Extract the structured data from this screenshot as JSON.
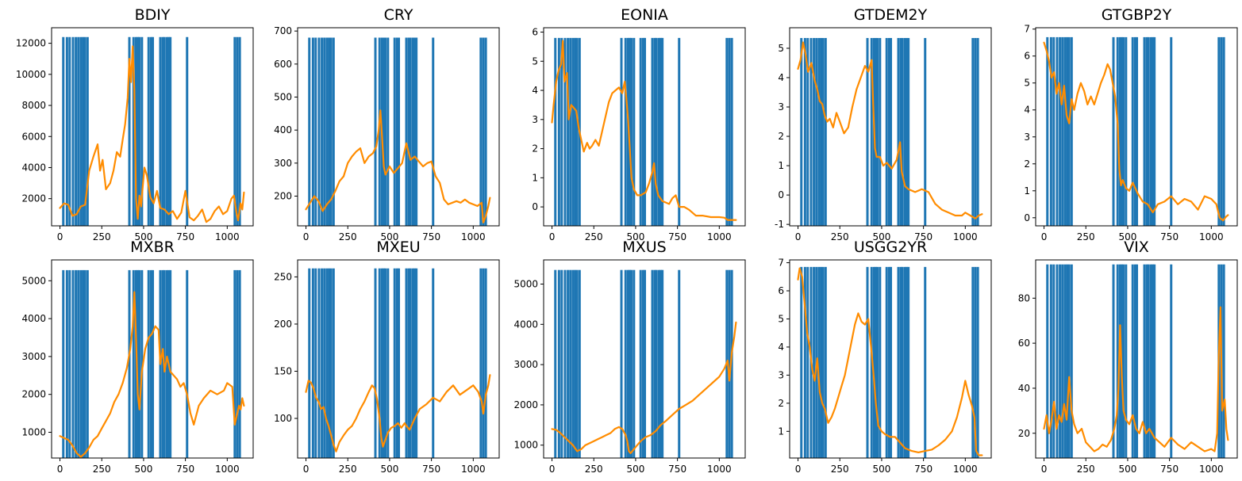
{
  "figure": {
    "bar_color": "#1f77b4",
    "line_color": "#ff8c00",
    "event_x": [
      20,
      42,
      58,
      78,
      95,
      110,
      125,
      138,
      150,
      165,
      415,
      440,
      455,
      465,
      475,
      490,
      530,
      545,
      555,
      600,
      615,
      625,
      640,
      650,
      660,
      760,
      1045,
      1060,
      1075
    ]
  },
  "chart_data": [
    {
      "type": "line",
      "title": "BDIY",
      "xlim": [
        -50,
        1155
      ],
      "xticks": [
        0,
        250,
        500,
        750,
        1000
      ],
      "ylim": [
        250,
        13000
      ],
      "yticks": [
        2000,
        4000,
        6000,
        8000,
        10000,
        12000
      ],
      "bar_top": 12400,
      "x": [
        0,
        25,
        50,
        75,
        100,
        125,
        150,
        175,
        200,
        225,
        240,
        255,
        275,
        300,
        320,
        340,
        360,
        375,
        390,
        405,
        415,
        425,
        435,
        445,
        455,
        465,
        475,
        485,
        495,
        505,
        520,
        540,
        560,
        580,
        600,
        625,
        650,
        675,
        700,
        725,
        750,
        775,
        800,
        825,
        850,
        875,
        900,
        925,
        950,
        975,
        1000,
        1025,
        1040,
        1055,
        1065,
        1080,
        1090,
        1100
      ],
      "y": [
        1400,
        1700,
        1600,
        900,
        1000,
        1500,
        1600,
        3800,
        4700,
        5500,
        3800,
        4500,
        2600,
        3000,
        3800,
        5000,
        4700,
        5800,
        6800,
        8500,
        11000,
        9500,
        11800,
        9000,
        2000,
        700,
        2200,
        1500,
        2800,
        4000,
        3500,
        2100,
        1700,
        2500,
        1400,
        1300,
        1000,
        1200,
        700,
        1100,
        2500,
        800,
        600,
        900,
        1300,
        500,
        700,
        1200,
        1500,
        1000,
        1200,
        2000,
        2200,
        1100,
        600,
        1700,
        1300,
        2400
      ]
    },
    {
      "type": "line",
      "title": "CRY",
      "xlim": [
        -50,
        1155
      ],
      "xticks": [
        0,
        250,
        500,
        750,
        1000
      ],
      "ylim": [
        110,
        710
      ],
      "yticks": [
        200,
        300,
        400,
        500,
        600,
        700
      ],
      "bar_top": 680,
      "x": [
        0,
        25,
        50,
        75,
        100,
        125,
        150,
        175,
        200,
        225,
        250,
        275,
        300,
        325,
        350,
        375,
        400,
        420,
        435,
        445,
        455,
        465,
        475,
        500,
        525,
        550,
        575,
        600,
        625,
        650,
        675,
        700,
        725,
        750,
        775,
        800,
        825,
        850,
        875,
        900,
        925,
        950,
        975,
        1000,
        1025,
        1050,
        1060,
        1075,
        1090,
        1100
      ],
      "y": [
        160,
        180,
        200,
        185,
        155,
        175,
        190,
        215,
        245,
        260,
        300,
        320,
        335,
        345,
        300,
        320,
        330,
        350,
        400,
        460,
        380,
        290,
        265,
        290,
        270,
        285,
        300,
        360,
        310,
        320,
        305,
        290,
        300,
        305,
        260,
        240,
        190,
        175,
        180,
        185,
        180,
        190,
        180,
        175,
        170,
        180,
        120,
        140,
        170,
        195
      ]
    },
    {
      "type": "line",
      "title": "EONIA",
      "xlim": [
        -50,
        1155
      ],
      "xticks": [
        0,
        250,
        500,
        750,
        1000
      ],
      "ylim": [
        -0.65,
        6.15
      ],
      "yticks": [
        0,
        1,
        2,
        3,
        4,
        5,
        6
      ],
      "bar_top": 5.8,
      "x": [
        0,
        10,
        25,
        40,
        55,
        65,
        75,
        90,
        100,
        115,
        130,
        145,
        160,
        175,
        190,
        210,
        225,
        240,
        260,
        280,
        300,
        320,
        340,
        360,
        380,
        400,
        420,
        435,
        445,
        455,
        465,
        475,
        490,
        510,
        530,
        560,
        580,
        600,
        610,
        620,
        635,
        660,
        700,
        720,
        740,
        760,
        790,
        820,
        860,
        900,
        950,
        1000,
        1030,
        1050,
        1070,
        1090,
        1100
      ],
      "y": [
        2.9,
        3.5,
        4.3,
        4.7,
        4.9,
        5.7,
        4.3,
        4.6,
        3.0,
        3.5,
        3.4,
        3.3,
        2.7,
        2.3,
        1.9,
        2.2,
        2.0,
        2.1,
        2.3,
        2.1,
        2.6,
        3.1,
        3.6,
        3.9,
        4.0,
        4.1,
        3.9,
        4.3,
        3.7,
        3.0,
        2.0,
        1.0,
        0.6,
        0.4,
        0.4,
        0.5,
        0.8,
        1.2,
        1.5,
        0.8,
        0.4,
        0.2,
        0.1,
        0.3,
        0.4,
        0.0,
        0.0,
        -0.1,
        -0.3,
        -0.3,
        -0.35,
        -0.35,
        -0.37,
        -0.45,
        -0.45,
        -0.45,
        -0.45
      ]
    },
    {
      "type": "line",
      "title": "GTDEM2Y",
      "xlim": [
        -50,
        1155
      ],
      "xticks": [
        0,
        250,
        500,
        750,
        1000
      ],
      "ylim": [
        -1.05,
        5.7
      ],
      "yticks": [
        -1,
        0,
        1,
        2,
        3,
        4,
        5
      ],
      "bar_top": 5.35,
      "x": [
        0,
        15,
        30,
        45,
        60,
        80,
        100,
        115,
        130,
        145,
        160,
        175,
        190,
        210,
        230,
        250,
        275,
        300,
        325,
        350,
        375,
        400,
        420,
        440,
        450,
        460,
        470,
        490,
        510,
        530,
        560,
        590,
        610,
        620,
        640,
        660,
        700,
        740,
        780,
        820,
        860,
        900,
        940,
        980,
        1000,
        1030,
        1060,
        1080,
        1100
      ],
      "y": [
        4.3,
        4.6,
        5.2,
        4.8,
        4.2,
        4.5,
        3.9,
        3.6,
        3.2,
        3.1,
        2.7,
        2.5,
        2.6,
        2.3,
        2.8,
        2.5,
        2.1,
        2.3,
        3.0,
        3.6,
        4.0,
        4.4,
        4.2,
        4.6,
        3.0,
        1.6,
        1.3,
        1.3,
        1.0,
        1.1,
        0.9,
        1.2,
        1.8,
        0.8,
        0.3,
        0.2,
        0.1,
        0.2,
        0.1,
        -0.3,
        -0.5,
        -0.6,
        -0.7,
        -0.7,
        -0.6,
        -0.7,
        -0.8,
        -0.7,
        -0.65
      ]
    },
    {
      "type": "line",
      "title": "GTGBP2Y",
      "xlim": [
        -50,
        1155
      ],
      "xticks": [
        0,
        250,
        500,
        750,
        1000
      ],
      "ylim": [
        -0.3,
        7.05
      ],
      "yticks": [
        0,
        1,
        2,
        3,
        4,
        5,
        6,
        7
      ],
      "bar_top": 6.7,
      "x": [
        0,
        15,
        30,
        45,
        60,
        75,
        90,
        105,
        120,
        135,
        150,
        165,
        180,
        200,
        220,
        240,
        260,
        280,
        300,
        320,
        340,
        360,
        380,
        395,
        410,
        425,
        440,
        450,
        460,
        470,
        490,
        510,
        530,
        560,
        590,
        620,
        650,
        680,
        720,
        760,
        800,
        840,
        880,
        920,
        960,
        1000,
        1030,
        1050,
        1070,
        1090,
        1100
      ],
      "y": [
        6.5,
        6.2,
        5.8,
        5.2,
        5.4,
        4.6,
        5.0,
        4.2,
        4.9,
        3.8,
        3.5,
        4.4,
        4.0,
        4.6,
        5.0,
        4.7,
        4.2,
        4.5,
        4.2,
        4.6,
        5.0,
        5.3,
        5.7,
        5.5,
        5.0,
        4.5,
        3.5,
        1.8,
        1.2,
        1.4,
        1.1,
        1.0,
        1.3,
        0.9,
        0.6,
        0.5,
        0.2,
        0.5,
        0.6,
        0.8,
        0.5,
        0.7,
        0.6,
        0.3,
        0.8,
        0.7,
        0.5,
        0.0,
        -0.1,
        0.05,
        0.1
      ]
    },
    {
      "type": "line",
      "title": "MXBR",
      "xlim": [
        -50,
        1155
      ],
      "xticks": [
        0,
        250,
        500,
        750,
        1000
      ],
      "ylim": [
        320,
        5550
      ],
      "yticks": [
        1000,
        2000,
        3000,
        4000,
        5000
      ],
      "bar_top": 5280,
      "x": [
        0,
        25,
        50,
        75,
        100,
        125,
        150,
        175,
        200,
        225,
        250,
        275,
        300,
        325,
        350,
        375,
        400,
        420,
        435,
        445,
        455,
        465,
        475,
        490,
        510,
        530,
        550,
        570,
        590,
        600,
        615,
        625,
        640,
        660,
        680,
        700,
        720,
        740,
        760,
        780,
        800,
        830,
        860,
        900,
        940,
        980,
        1000,
        1030,
        1045,
        1060,
        1070,
        1080,
        1090,
        1100
      ],
      "y": [
        900,
        850,
        800,
        650,
        450,
        350,
        450,
        600,
        800,
        900,
        1100,
        1300,
        1500,
        1800,
        2000,
        2300,
        2700,
        3200,
        3800,
        4700,
        3500,
        2000,
        1600,
        2600,
        3200,
        3500,
        3600,
        3800,
        3700,
        2800,
        3200,
        2600,
        3000,
        2600,
        2500,
        2400,
        2200,
        2300,
        2000,
        1500,
        1200,
        1700,
        1900,
        2100,
        2000,
        2100,
        2300,
        2200,
        1200,
        1500,
        1700,
        1600,
        1900,
        1700
      ]
    },
    {
      "type": "line",
      "title": "MXEU",
      "xlim": [
        -50,
        1155
      ],
      "xticks": [
        0,
        250,
        500,
        750,
        1000
      ],
      "ylim": [
        58,
        268
      ],
      "yticks": [
        100,
        150,
        200,
        250
      ],
      "bar_top": 259,
      "x": [
        0,
        15,
        30,
        45,
        60,
        75,
        90,
        105,
        120,
        135,
        150,
        165,
        180,
        200,
        225,
        250,
        275,
        300,
        325,
        350,
        375,
        395,
        410,
        425,
        440,
        450,
        460,
        470,
        490,
        510,
        530,
        550,
        570,
        590,
        600,
        620,
        650,
        680,
        720,
        760,
        800,
        840,
        880,
        920,
        960,
        1000,
        1030,
        1050,
        1060,
        1075,
        1090,
        1100
      ],
      "y": [
        128,
        140,
        138,
        132,
        122,
        118,
        110,
        112,
        100,
        92,
        82,
        72,
        65,
        75,
        82,
        88,
        92,
        100,
        110,
        118,
        128,
        135,
        132,
        120,
        100,
        80,
        70,
        75,
        85,
        90,
        92,
        95,
        90,
        95,
        92,
        88,
        100,
        110,
        115,
        122,
        118,
        128,
        135,
        125,
        130,
        135,
        128,
        118,
        105,
        125,
        135,
        146
      ]
    },
    {
      "type": "line",
      "title": "MXUS",
      "xlim": [
        -50,
        1155
      ],
      "xticks": [
        0,
        250,
        500,
        750,
        1000
      ],
      "ylim": [
        680,
        5600
      ],
      "yticks": [
        1000,
        2000,
        3000,
        4000,
        5000
      ],
      "bar_top": 5350,
      "x": [
        0,
        25,
        50,
        75,
        100,
        125,
        150,
        175,
        200,
        225,
        250,
        275,
        300,
        325,
        350,
        375,
        400,
        420,
        440,
        450,
        460,
        470,
        490,
        510,
        530,
        560,
        590,
        620,
        650,
        680,
        720,
        760,
        800,
        840,
        880,
        920,
        960,
        1000,
        1030,
        1050,
        1060,
        1075,
        1090,
        1100
      ],
      "y": [
        1400,
        1380,
        1300,
        1200,
        1100,
        1000,
        850,
        900,
        1000,
        1050,
        1100,
        1150,
        1200,
        1250,
        1300,
        1400,
        1450,
        1400,
        1250,
        1100,
        850,
        800,
        900,
        1000,
        1100,
        1200,
        1250,
        1350,
        1500,
        1600,
        1750,
        1900,
        2000,
        2100,
        2250,
        2400,
        2550,
        2700,
        2900,
        3100,
        2600,
        3300,
        3700,
        4050
      ]
    },
    {
      "type": "line",
      "title": "USGG2YR",
      "xlim": [
        -50,
        1155
      ],
      "xticks": [
        0,
        250,
        500,
        750,
        1000
      ],
      "ylim": [
        0.05,
        7.1
      ],
      "yticks": [
        1,
        2,
        3,
        4,
        5,
        6,
        7
      ],
      "bar_top": 6.85,
      "x": [
        0,
        10,
        25,
        40,
        55,
        70,
        85,
        100,
        115,
        130,
        145,
        160,
        180,
        200,
        220,
        240,
        260,
        280,
        300,
        320,
        340,
        360,
        380,
        400,
        420,
        440,
        455,
        465,
        480,
        500,
        520,
        550,
        580,
        610,
        640,
        680,
        720,
        760,
        800,
        840,
        880,
        920,
        950,
        980,
        1000,
        1020,
        1040,
        1055,
        1065,
        1080,
        1100
      ],
      "y": [
        6.4,
        6.8,
        6.5,
        5.5,
        4.5,
        4.0,
        3.2,
        2.8,
        3.6,
        2.4,
        2.0,
        1.8,
        1.3,
        1.5,
        1.8,
        2.2,
        2.6,
        3.0,
        3.6,
        4.2,
        4.8,
        5.2,
        4.9,
        4.8,
        5.0,
        3.8,
        2.8,
        2.0,
        1.2,
        1.0,
        0.9,
        0.8,
        0.8,
        0.6,
        0.4,
        0.3,
        0.25,
        0.3,
        0.35,
        0.5,
        0.7,
        1.0,
        1.5,
        2.2,
        2.8,
        2.3,
        1.9,
        1.5,
        0.3,
        0.15,
        0.15
      ]
    },
    {
      "type": "line",
      "title": "VIX",
      "xlim": [
        -50,
        1155
      ],
      "xticks": [
        0,
        250,
        500,
        750,
        1000
      ],
      "ylim": [
        9,
        97
      ],
      "yticks": [
        20,
        40,
        60,
        80
      ],
      "bar_top": 95,
      "x": [
        0,
        15,
        30,
        45,
        60,
        75,
        90,
        105,
        120,
        135,
        150,
        165,
        180,
        200,
        225,
        250,
        275,
        300,
        325,
        350,
        375,
        400,
        420,
        435,
        445,
        455,
        465,
        475,
        490,
        510,
        530,
        550,
        570,
        590,
        610,
        630,
        660,
        690,
        720,
        760,
        800,
        840,
        880,
        920,
        960,
        1000,
        1020,
        1035,
        1045,
        1055,
        1065,
        1080,
        1090,
        1100
      ],
      "y": [
        22,
        28,
        20,
        26,
        34,
        22,
        28,
        25,
        33,
        26,
        45,
        30,
        24,
        20,
        22,
        16,
        14,
        12,
        13,
        15,
        14,
        17,
        22,
        28,
        40,
        68,
        45,
        30,
        26,
        24,
        28,
        22,
        20,
        25,
        20,
        22,
        18,
        16,
        14,
        18,
        15,
        13,
        16,
        14,
        12,
        13,
        12,
        20,
        55,
        76,
        30,
        35,
        22,
        17
      ]
    }
  ]
}
